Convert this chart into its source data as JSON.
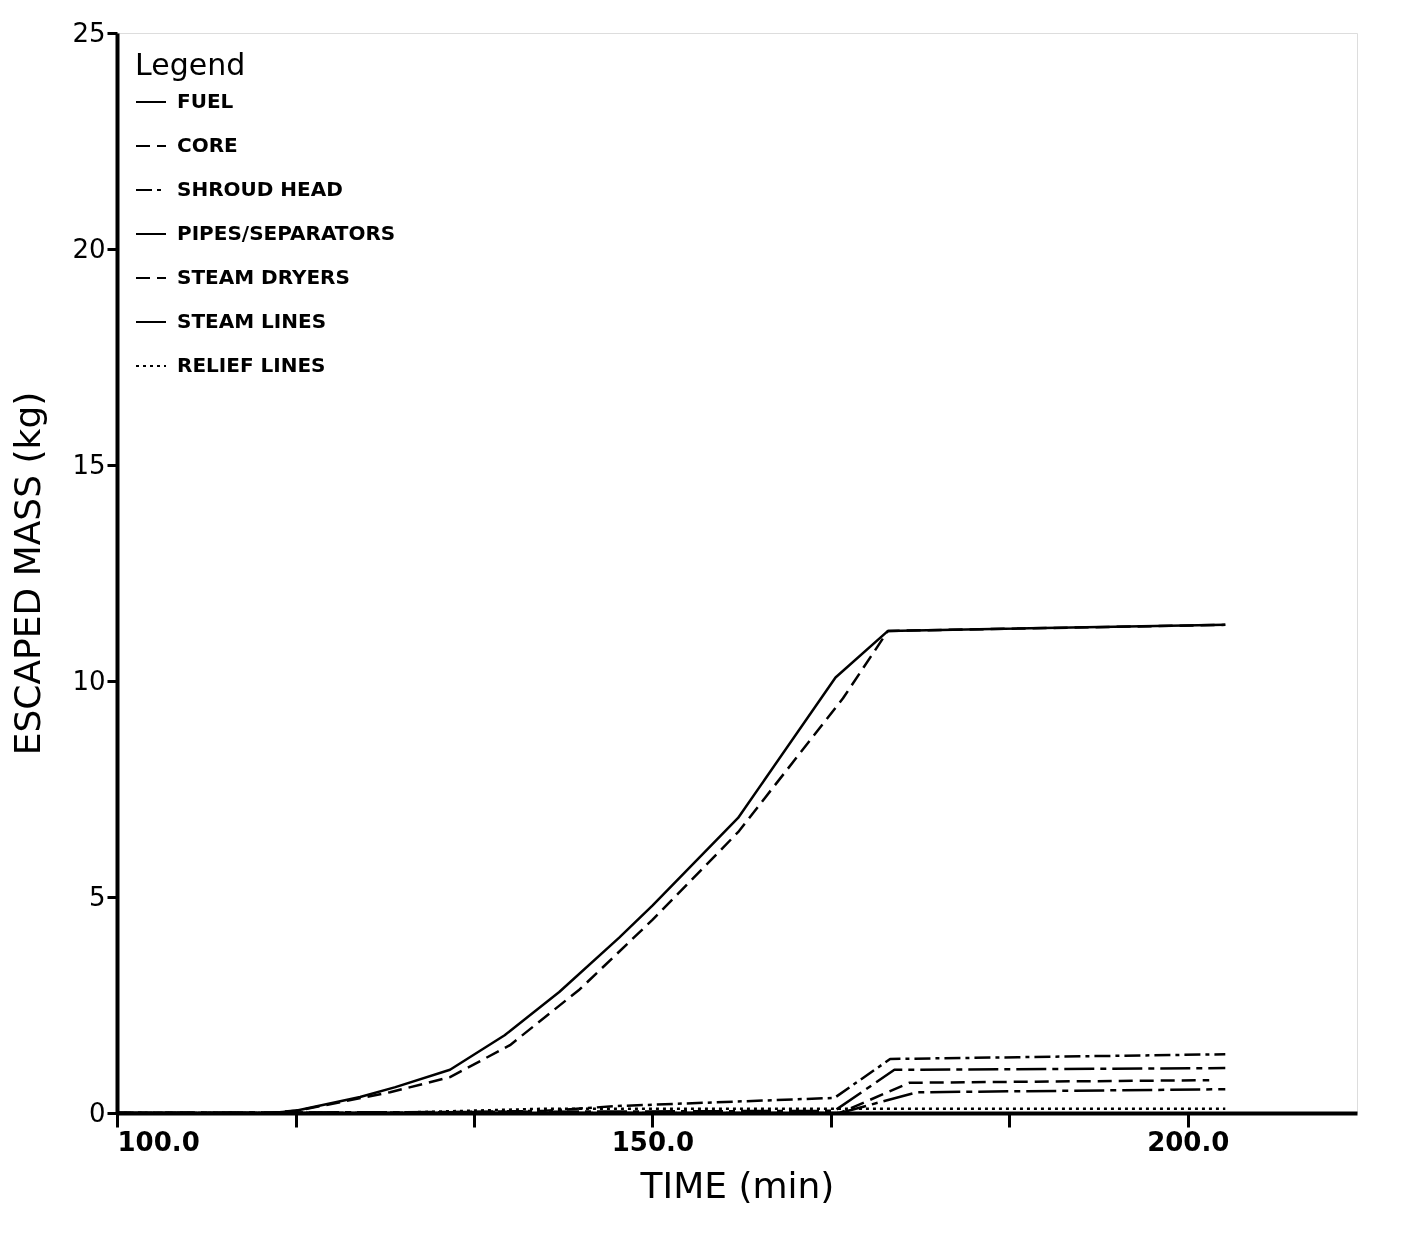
{
  "chart_data": {
    "type": "line",
    "xlabel": "TIME (min)",
    "ylabel": "ESCAPED MASS (kg)",
    "legend_title": "Legend",
    "legend": "top left",
    "grid": false,
    "xlim": [
      100,
      215.8
    ],
    "ylim": [
      0,
      25
    ],
    "xticks": [
      {
        "value": 100,
        "label": "100.0"
      },
      {
        "value": 116.7,
        "label": null
      },
      {
        "value": 133.3,
        "label": null
      },
      {
        "value": 150,
        "label": "150.0"
      },
      {
        "value": 166.7,
        "label": null
      },
      {
        "value": 183.3,
        "label": null
      },
      {
        "value": 200,
        "label": "200.0"
      }
    ],
    "yticks": [
      0,
      5,
      10,
      15,
      20,
      25
    ],
    "series": [
      {
        "name": "FUEL",
        "color": "#000000",
        "line_style": "solid",
        "x": [
          100,
          114.4,
          116.7,
          122.7,
          126,
          131.1,
          136.2,
          141.3,
          146.9,
          150,
          158,
          167.1,
          172,
          203.5
        ],
        "values": [
          0,
          0,
          0.05,
          0.37,
          0.6,
          1.0,
          1.8,
          2.8,
          4.06,
          4.8,
          6.83,
          10.08,
          11.16,
          11.3
        ]
      },
      {
        "name": "CORE",
        "color": "#000000",
        "line_style": "dashed",
        "x": [
          100,
          114.4,
          117.2,
          125.5,
          131.1,
          136.7,
          143.2,
          150,
          158,
          167.8,
          172,
          203.5
        ],
        "values": [
          0,
          0,
          0.07,
          0.48,
          0.83,
          1.57,
          2.86,
          4.47,
          6.5,
          9.6,
          11.16,
          11.3
        ]
      },
      {
        "name": "SHROUD HEAD",
        "color": "#000000",
        "line_style": "dashdot",
        "x": [
          100,
          125,
          140,
          146.6,
          167,
          172.2,
          203.5
        ],
        "values": [
          0,
          0,
          0.05,
          0.16,
          0.35,
          1.25,
          1.36
        ]
      },
      {
        "name": "PIPES/SEPARATORS",
        "color": "#000000",
        "line_style": "longdash",
        "x": [
          100,
          167,
          172.6,
          203.5
        ],
        "values": [
          0,
          0.05,
          1.0,
          1.04
        ]
      },
      {
        "name": "STEAM DRYERS",
        "color": "#000000",
        "line_style": "dashed",
        "x": [
          100,
          167.5,
          174,
          202
        ],
        "values": [
          0,
          0,
          0.7,
          0.76
        ]
      },
      {
        "name": "STEAM LINES",
        "color": "#000000",
        "line_style": "longdash",
        "x": [
          100,
          167.5,
          174.7,
          203.5
        ],
        "values": [
          0,
          0,
          0.48,
          0.55
        ]
      },
      {
        "name": "RELIEF LINES",
        "color": "#000000",
        "line_style": "dotted",
        "x": [
          100,
          125,
          140,
          203.5
        ],
        "values": [
          0,
          0,
          0.1,
          0.1
        ]
      }
    ]
  }
}
